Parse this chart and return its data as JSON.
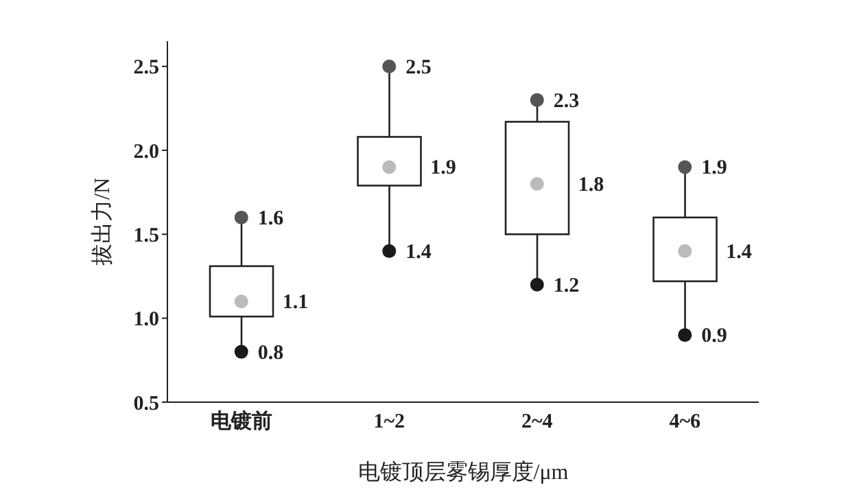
{
  "chart_data": {
    "type": "box",
    "xlabel": "电镀顶层雾锡厚度/μm",
    "ylabel": "拔出力/N",
    "categories": [
      "电镀前",
      "1~2",
      "2~4",
      "4~6"
    ],
    "boxes": [
      {
        "low": 0.8,
        "q1": 1.01,
        "median": 1.1,
        "q3": 1.31,
        "high": 1.6
      },
      {
        "low": 1.4,
        "q1": 1.79,
        "median": 1.9,
        "q3": 2.08,
        "high": 2.5
      },
      {
        "low": 1.2,
        "q1": 1.5,
        "median": 1.8,
        "q3": 2.17,
        "high": 2.3
      },
      {
        "low": 0.9,
        "q1": 1.22,
        "median": 1.4,
        "q3": 1.6,
        "high": 1.9
      }
    ],
    "series": [
      {
        "type": "scatter",
        "color": "#555555",
        "x": [
          "电镀前",
          "1~2",
          "2~4",
          "4~6"
        ],
        "values": [
          1.6,
          2.5,
          2.3,
          1.9
        ]
      },
      {
        "type": "scatter",
        "color": "#1a1a1a",
        "x": [
          "电镀前",
          "1~2",
          "2~4",
          "4~6"
        ],
        "values": [
          0.8,
          1.4,
          1.2,
          0.9
        ]
      }
    ],
    "annotations": [
      {
        "text": "1.1",
        "x": "电镀前",
        "y": 1.1
      },
      {
        "text": "1.9",
        "x": "1~2",
        "y": 1.9
      },
      {
        "text": "1.8",
        "x": "2~4",
        "y": 1.8
      },
      {
        "text": "1.4",
        "x": "4~6",
        "y": 1.4
      }
    ],
    "ylim": [
      0.5,
      2.65
    ],
    "yticks": [
      {
        "value": 0.5,
        "label": "0.5"
      },
      {
        "value": 1,
        "label": "1.0"
      },
      {
        "value": 1.5,
        "label": "1.5"
      },
      {
        "value": 2,
        "label": "2.0"
      },
      {
        "value": 2.5,
        "label": "2.5"
      }
    ],
    "data_labels": true
  }
}
